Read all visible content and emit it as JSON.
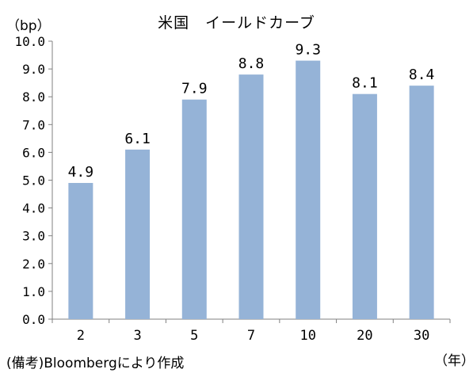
{
  "chart_data": {
    "type": "bar",
    "title": "米国　イールドカーブ",
    "ylabel": "（bp）",
    "xlabel": "（年）",
    "source": "(備考)Bloombergにより作成",
    "categories": [
      "2",
      "3",
      "5",
      "7",
      "10",
      "20",
      "30"
    ],
    "values": [
      4.9,
      6.1,
      7.9,
      8.8,
      9.3,
      8.1,
      8.4
    ],
    "data_labels": [
      "4.9",
      "6.1",
      "7.9",
      "8.8",
      "9.3",
      "8.1",
      "8.4"
    ],
    "ylim": [
      0,
      10
    ],
    "yticks": [
      "0.0",
      "1.0",
      "2.0",
      "3.0",
      "4.0",
      "5.0",
      "6.0",
      "7.0",
      "8.0",
      "9.0",
      "10.0"
    ],
    "grid": false,
    "bar_color": "#95b3d7"
  }
}
